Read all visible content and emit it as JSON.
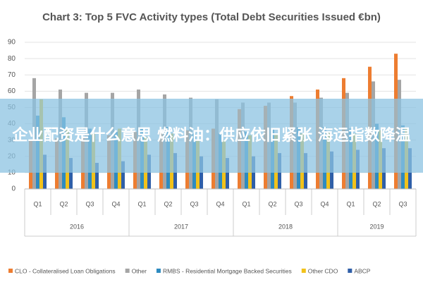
{
  "chart_data": {
    "type": "bar",
    "title": "Chart 3: Top 5 FVC Activity types (Total Debt Securities Issued €bn)",
    "groups": [
      {
        "label": "2016",
        "categories": [
          "Q1",
          "Q2",
          "Q3",
          "Q4"
        ]
      },
      {
        "label": "2017",
        "categories": [
          "Q1",
          "Q2",
          "Q3",
          "Q4"
        ]
      },
      {
        "label": "2018",
        "categories": [
          "Q1",
          "Q2",
          "Q3",
          "Q4"
        ]
      },
      {
        "label": "2019",
        "categories": [
          "Q1",
          "Q2",
          "Q3"
        ]
      }
    ],
    "series": [
      {
        "name": "CLO - Collateralised Loan Obligations",
        "color": "#ed7d31",
        "values": [
          30,
          31,
          32,
          33,
          35,
          35,
          36,
          37,
          49,
          51,
          57,
          61,
          68,
          75,
          83
        ]
      },
      {
        "name": "Other",
        "color": "#a5a5a5",
        "values": [
          68,
          61,
          59,
          59,
          61,
          58,
          56,
          55,
          53,
          53,
          53,
          56,
          59,
          66,
          67
        ]
      },
      {
        "name": "RMBS - Residential Mortgage Backed Securities",
        "color": "#2e8bc0",
        "values": [
          45,
          44,
          37,
          35,
          37,
          38,
          34,
          34,
          35,
          37,
          38,
          38,
          37,
          40,
          39
        ]
      },
      {
        "name": "Other CDO",
        "color": "#f2c21a",
        "values": [
          55,
          37,
          34,
          37,
          32,
          34,
          30,
          30,
          33,
          34,
          34,
          35,
          34,
          36,
          37
        ]
      },
      {
        "name": "ABCP",
        "color": "#2f5fa8",
        "values": [
          21,
          19,
          16,
          17,
          21,
          22,
          20,
          19,
          20,
          22,
          22,
          23,
          24,
          25,
          25
        ]
      }
    ],
    "ylim": [
      0,
      90
    ],
    "yticks": [
      0,
      10,
      20,
      30,
      40,
      50,
      60,
      70,
      80,
      90
    ],
    "grid": true
  },
  "overlay_text": "企业配资是什么意思 燃料油：供应依旧紧张 海运指数降温"
}
